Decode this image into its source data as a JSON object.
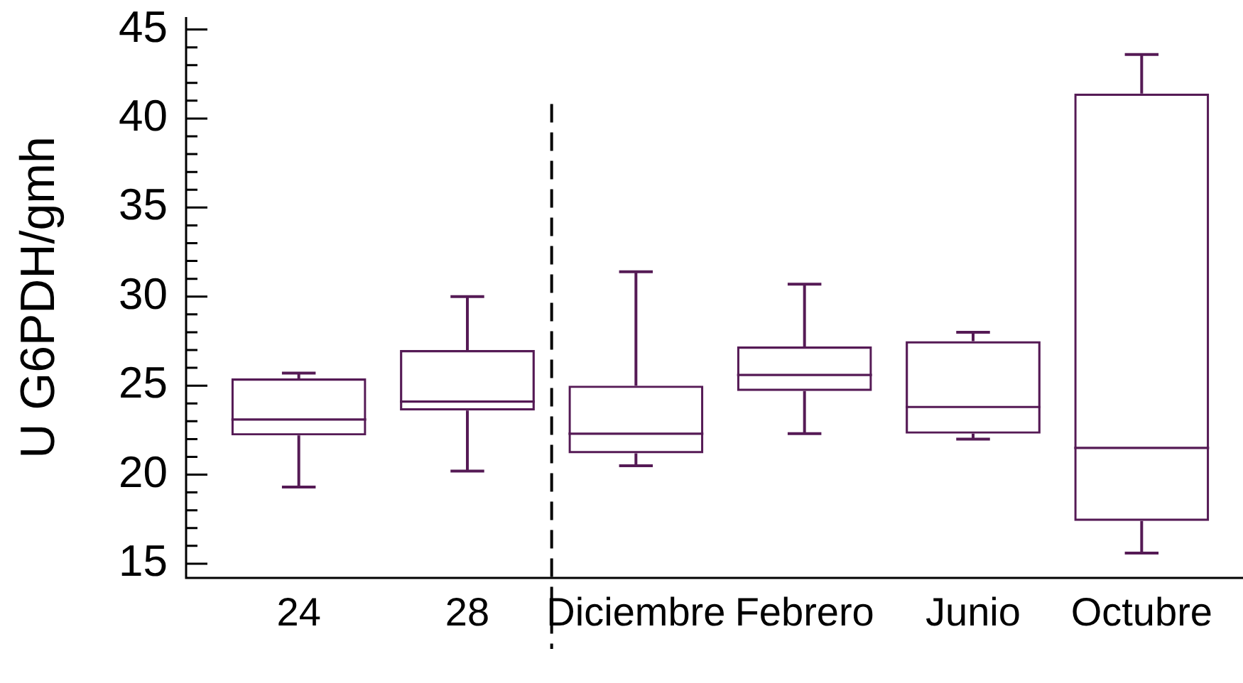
{
  "chart_data": {
    "type": "box",
    "ylabel": "U G6PDH/gmh",
    "categories": [
      "24",
      "28",
      "Diciembre",
      "Febrero",
      "Junio",
      "Octubre"
    ],
    "boxes": [
      {
        "low": 19.3,
        "q1": 22.2,
        "median": 23.1,
        "q3": 25.4,
        "high": 25.7
      },
      {
        "low": 20.2,
        "q1": 23.6,
        "median": 24.1,
        "q3": 27.0,
        "high": 30.0
      },
      {
        "low": 20.5,
        "q1": 21.2,
        "median": 22.3,
        "q3": 25.0,
        "high": 31.4
      },
      {
        "low": 22.3,
        "q1": 24.7,
        "median": 25.6,
        "q3": 27.2,
        "high": 30.7
      },
      {
        "low": 22.0,
        "q1": 22.3,
        "median": 23.8,
        "q3": 27.5,
        "high": 28.0
      },
      {
        "low": 15.6,
        "q1": 17.4,
        "median": 21.5,
        "q3": 41.4,
        "high": 43.6
      }
    ],
    "color": "#551a55",
    "ylim": [
      14.2,
      45.7
    ],
    "yticks": [
      15,
      {
        "value": 16,
        "label": null
      },
      {
        "value": 17,
        "label": null
      },
      {
        "value": 18,
        "label": null
      },
      {
        "value": 19,
        "label": null
      },
      20,
      {
        "value": 21,
        "label": null
      },
      {
        "value": 22,
        "label": null
      },
      {
        "value": 23,
        "label": null
      },
      {
        "value": 24,
        "label": null
      },
      25,
      {
        "value": 26,
        "label": null
      },
      {
        "value": 27,
        "label": null
      },
      {
        "value": 28,
        "label": null
      },
      {
        "value": 29,
        "label": null
      },
      30,
      {
        "value": 31,
        "label": null
      },
      {
        "value": 32,
        "label": null
      },
      {
        "value": 33,
        "label": null
      },
      {
        "value": 34,
        "label": null
      },
      35,
      {
        "value": 36,
        "label": null
      },
      {
        "value": 37,
        "label": null
      },
      {
        "value": 38,
        "label": null
      },
      {
        "value": 39,
        "label": null
      },
      40,
      {
        "value": 41,
        "label": null
      },
      {
        "value": 42,
        "label": null
      },
      {
        "value": 43,
        "label": null
      },
      {
        "value": 44,
        "label": null
      },
      45
    ],
    "grid": false,
    "legend": false
  }
}
